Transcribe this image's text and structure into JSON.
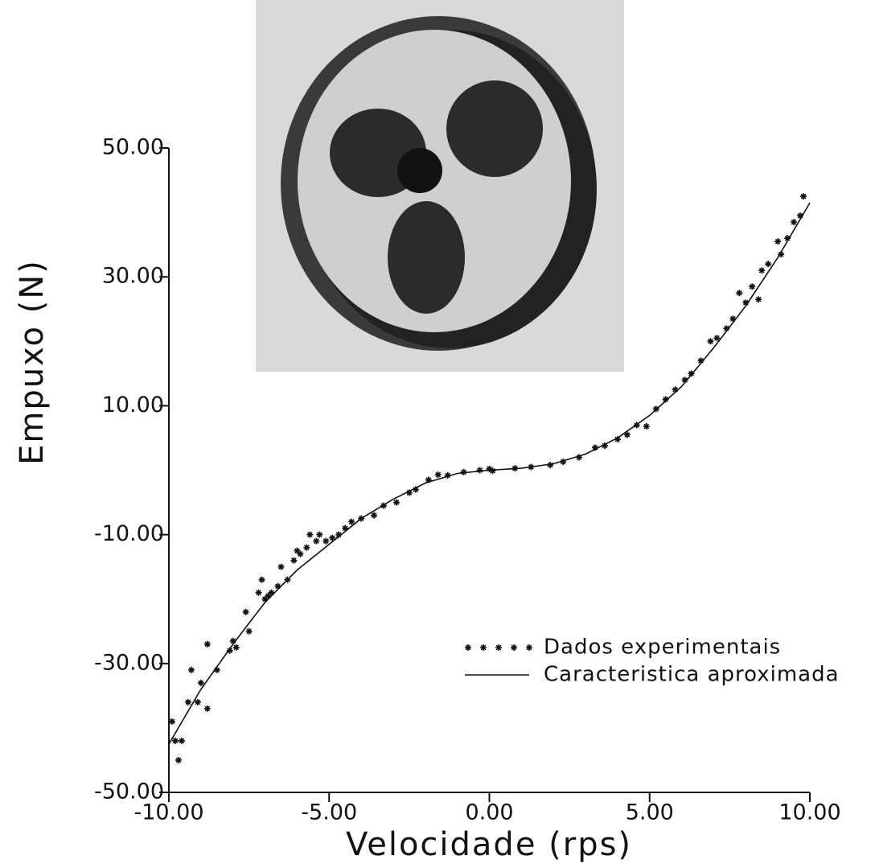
{
  "chart_data": {
    "type": "scatter",
    "xlabel": "Velocidade (rps)",
    "ylabel": "Empuxo (N)",
    "xlim": [
      -10,
      10
    ],
    "ylim": [
      -50,
      50
    ],
    "xticks": [
      {
        "value": -10,
        "label": "-10.00"
      },
      {
        "value": -5,
        "label": "-5.00"
      },
      {
        "value": 0,
        "label": "0.00"
      },
      {
        "value": 5,
        "label": "5.00"
      },
      {
        "value": 10,
        "label": "10.00"
      }
    ],
    "yticks": [
      {
        "value": -50,
        "label": "-50.00"
      },
      {
        "value": -30,
        "label": "-30.00"
      },
      {
        "value": -10,
        "label": "-10.00"
      },
      {
        "value": 10,
        "label": "10.00"
      },
      {
        "value": 30,
        "label": "30.00"
      },
      {
        "value": 50,
        "label": "50.00"
      }
    ],
    "legend": "lower right",
    "series": [
      {
        "name": "Dados experimentais",
        "mode": "markers",
        "color": "#111111",
        "x": [
          -9.9,
          -9.8,
          -9.7,
          -9.6,
          -9.4,
          -9.3,
          -9.1,
          -9,
          -8.8,
          -8.8,
          -8.5,
          -8.1,
          -8,
          -7.9,
          -7.6,
          -7.5,
          -7.2,
          -7.1,
          -7,
          -6.9,
          -6.8,
          -6.6,
          -6.5,
          -6.3,
          -6.1,
          -6,
          -5.9,
          -5.7,
          -5.6,
          -5.4,
          -5.3,
          -5.1,
          -4.9,
          -4.7,
          -4.5,
          -4.3,
          -4,
          -3.6,
          -3.3,
          -2.9,
          -2.5,
          -2.3,
          -1.9,
          -1.6,
          -1.3,
          -0.8,
          -0.3,
          0,
          0.1,
          0.8,
          1.3,
          1.9,
          2.3,
          2.8,
          3.3,
          3.6,
          4,
          4.3,
          4.6,
          4.9,
          5.2,
          5.5,
          5.8,
          6.1,
          6.3,
          6.6,
          6.9,
          7.1,
          7.4,
          7.6,
          7.8,
          8,
          8.2,
          8.4,
          8.5,
          8.7,
          9,
          9.1,
          9.3,
          9.5,
          9.7,
          9.8
        ],
        "values": [
          -39,
          -42,
          -45,
          -42,
          -36,
          -31,
          -36,
          -33,
          -27,
          -37,
          -31,
          -28,
          -26.5,
          -27.5,
          -22,
          -25,
          -19,
          -17,
          -20,
          -19.5,
          -19,
          -18,
          -15,
          -17,
          -14,
          -12.5,
          -13,
          -12,
          -10,
          -11,
          -10,
          -11,
          -10.5,
          -10,
          -9,
          -8,
          -7.5,
          -7,
          -5.5,
          -5,
          -3.5,
          -3,
          -1.5,
          -0.7,
          -0.8,
          -0.3,
          0,
          0.2,
          -0.1,
          0.3,
          0.5,
          0.8,
          1.3,
          2,
          3.5,
          3.8,
          4.8,
          5.5,
          7,
          6.8,
          9.5,
          11,
          12.5,
          14,
          15,
          17,
          20,
          20.5,
          22,
          23.5,
          27.5,
          26,
          28.5,
          26.5,
          31,
          32,
          35.5,
          33.5,
          36,
          38.5,
          39.5,
          42.5
        ]
      },
      {
        "name": "Caracteristica aproximada",
        "mode": "line",
        "color": "#111111",
        "x": [
          -10,
          -9,
          -8,
          -7,
          -6,
          -5,
          -4,
          -3,
          -2,
          -1,
          0,
          1,
          2,
          3,
          4,
          5,
          6,
          7,
          8,
          9,
          10
        ],
        "values": [
          -42.5,
          -34,
          -27,
          -20.5,
          -15.5,
          -11.5,
          -7.5,
          -4.5,
          -2,
          -0.5,
          0,
          0.3,
          1,
          2.5,
          5,
          8.5,
          13,
          19,
          25.5,
          33,
          41.5
        ]
      }
    ]
  }
}
